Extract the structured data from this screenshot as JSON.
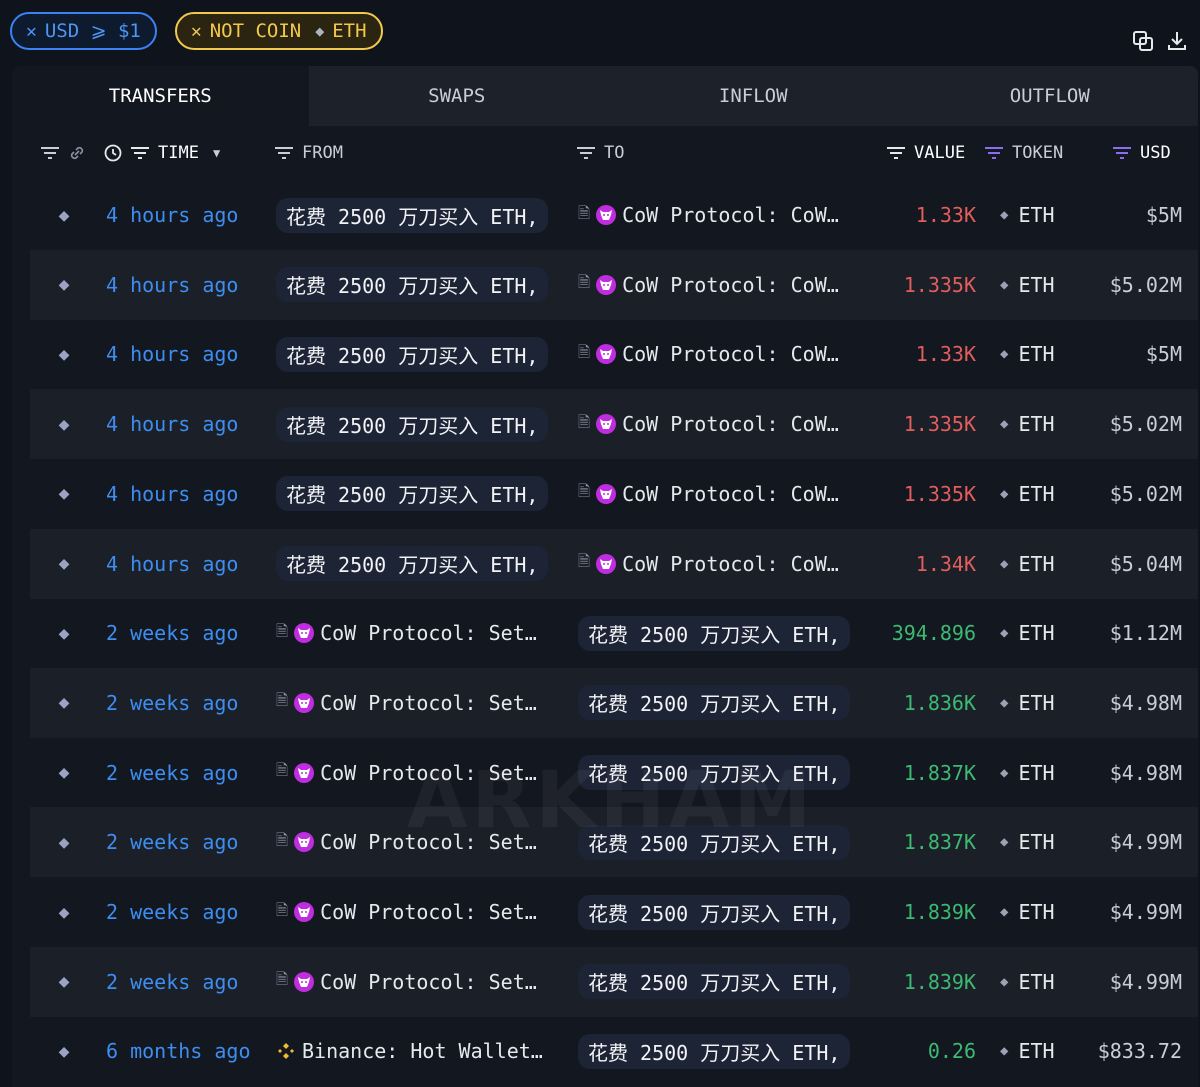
{
  "filters": [
    {
      "prefix": "✕",
      "label": "USD ⩾ $1"
    },
    {
      "prefix": "✕",
      "label": "NOT COIN",
      "token_icon": "eth-icon",
      "token": "ETH"
    }
  ],
  "toolbar": {
    "copy_icon": "copy-icon",
    "download_icon": "download-icon"
  },
  "tabs": [
    "TRANSFERS",
    "SWAPS",
    "INFLOW",
    "OUTFLOW"
  ],
  "active_tab": "TRANSFERS",
  "columns": {
    "time": "TIME",
    "from": "FROM",
    "to": "TO",
    "value": "VALUE",
    "token": "TOKEN",
    "usd": "USD"
  },
  "colors": {
    "time": "#3d8ef0",
    "value_out": "#e35d5d",
    "value_in": "#3dba72",
    "cow": "#c02de0",
    "binance": "#f3ba2f"
  },
  "rows": [
    {
      "time": "4 hours ago",
      "from": "花费 2500 万刀买入 ETH, ",
      "from_kind": "pill",
      "to": "CoW Protocol: CoW…",
      "to_kind": "cow",
      "value": "1.33K",
      "dir": "out",
      "token": "ETH",
      "usd": "$5M"
    },
    {
      "time": "4 hours ago",
      "from": "花费 2500 万刀买入 ETH, ",
      "from_kind": "pill",
      "to": "CoW Protocol: CoW…",
      "to_kind": "cow",
      "value": "1.335K",
      "dir": "out",
      "token": "ETH",
      "usd": "$5.02M"
    },
    {
      "time": "4 hours ago",
      "from": "花费 2500 万刀买入 ETH, ",
      "from_kind": "pill",
      "to": "CoW Protocol: CoW…",
      "to_kind": "cow",
      "value": "1.33K",
      "dir": "out",
      "token": "ETH",
      "usd": "$5M"
    },
    {
      "time": "4 hours ago",
      "from": "花费 2500 万刀买入 ETH, ",
      "from_kind": "pill",
      "to": "CoW Protocol: CoW…",
      "to_kind": "cow",
      "value": "1.335K",
      "dir": "out",
      "token": "ETH",
      "usd": "$5.02M"
    },
    {
      "time": "4 hours ago",
      "from": "花费 2500 万刀买入 ETH, ",
      "from_kind": "pill",
      "to": "CoW Protocol: CoW…",
      "to_kind": "cow",
      "value": "1.335K",
      "dir": "out",
      "token": "ETH",
      "usd": "$5.02M"
    },
    {
      "time": "4 hours ago",
      "from": "花费 2500 万刀买入 ETH, ",
      "from_kind": "pill",
      "to": "CoW Protocol: CoW…",
      "to_kind": "cow",
      "value": "1.34K",
      "dir": "out",
      "token": "ETH",
      "usd": "$5.04M"
    },
    {
      "time": "2 weeks ago",
      "from": "CoW Protocol: Set…",
      "from_kind": "cow",
      "to": "花费 2500 万刀买入 ETH, ",
      "to_kind": "pill",
      "value": "394.896",
      "dir": "in",
      "token": "ETH",
      "usd": "$1.12M"
    },
    {
      "time": "2 weeks ago",
      "from": "CoW Protocol: Set…",
      "from_kind": "cow",
      "to": "花费 2500 万刀买入 ETH, ",
      "to_kind": "pill",
      "value": "1.836K",
      "dir": "in",
      "token": "ETH",
      "usd": "$4.98M"
    },
    {
      "time": "2 weeks ago",
      "from": "CoW Protocol: Set…",
      "from_kind": "cow",
      "to": "花费 2500 万刀买入 ETH, ",
      "to_kind": "pill",
      "value": "1.837K",
      "dir": "in",
      "token": "ETH",
      "usd": "$4.98M"
    },
    {
      "time": "2 weeks ago",
      "from": "CoW Protocol: Set…",
      "from_kind": "cow",
      "to": "花费 2500 万刀买入 ETH, ",
      "to_kind": "pill",
      "value": "1.837K",
      "dir": "in",
      "token": "ETH",
      "usd": "$4.99M"
    },
    {
      "time": "2 weeks ago",
      "from": "CoW Protocol: Set…",
      "from_kind": "cow",
      "to": "花费 2500 万刀买入 ETH, ",
      "to_kind": "pill",
      "value": "1.839K",
      "dir": "in",
      "token": "ETH",
      "usd": "$4.99M"
    },
    {
      "time": "2 weeks ago",
      "from": "CoW Protocol: Set…",
      "from_kind": "cow",
      "to": "花费 2500 万刀买入 ETH, ",
      "to_kind": "pill",
      "value": "1.839K",
      "dir": "in",
      "token": "ETH",
      "usd": "$4.99M"
    },
    {
      "time": "6 months ago",
      "from": "Binance: Hot Wallet…",
      "from_kind": "binance",
      "to": "花费 2500 万刀买入 ETH, ",
      "to_kind": "pill",
      "value": "0.26",
      "dir": "in",
      "token": "ETH",
      "usd": "$833.72"
    }
  ],
  "watermark": "ARKHAM"
}
